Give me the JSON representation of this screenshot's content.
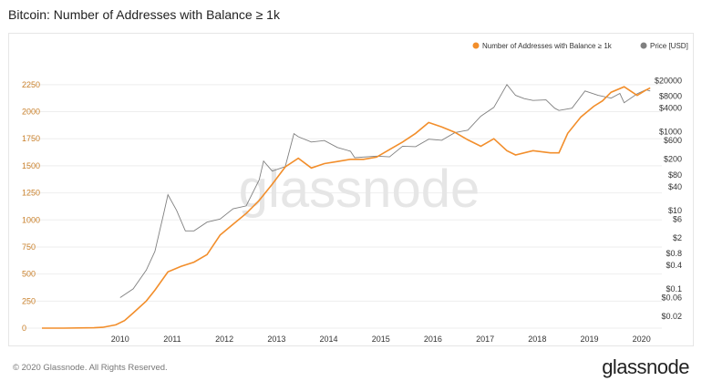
{
  "header": {
    "title": "Bitcoin: Number of Addresses with Balance ≥ 1k"
  },
  "footer": {
    "copyright": "© 2020 Glassnode. All Rights Reserved.",
    "brand": "glassnode"
  },
  "watermark": "glassnode",
  "colors": {
    "addresses": "#f28e2b",
    "price": "#808080",
    "left_axis_text": "#c9802b",
    "grid": "#eeeeee"
  },
  "chart_data": {
    "type": "line",
    "title": "Bitcoin: Number of Addresses with Balance ≥ 1k",
    "legend_position": "top-right",
    "x_ticks": [
      "2010",
      "2011",
      "2012",
      "2013",
      "2014",
      "2015",
      "2016",
      "2017",
      "2018",
      "2019",
      "2020"
    ],
    "y_left": {
      "ticks": [
        0,
        250,
        500,
        750,
        1000,
        1250,
        1500,
        1750,
        2000,
        2250
      ],
      "range": [
        0,
        2350
      ]
    },
    "y_right": {
      "scale": "log",
      "ticks": [
        "$20000",
        "$8000",
        "$4000",
        "$1000",
        "$600",
        "$200",
        "$80",
        "$40",
        "$10",
        "$6",
        "$2",
        "$0.8",
        "$0.4",
        "$0.1",
        "$0.06",
        "$0.02"
      ],
      "range": [
        0.01,
        30000
      ]
    },
    "series": [
      {
        "name": "Number of Addresses with Balance ≥ 1k",
        "axis": "left",
        "points": [
          [
            "2009-01",
            0
          ],
          [
            "2009-06",
            0
          ],
          [
            "2010-01",
            3
          ],
          [
            "2010-03",
            8
          ],
          [
            "2010-06",
            30
          ],
          [
            "2010-08",
            70
          ],
          [
            "2010-10",
            140
          ],
          [
            "2011-01",
            250
          ],
          [
            "2011-03",
            350
          ],
          [
            "2011-06",
            520
          ],
          [
            "2011-09",
            570
          ],
          [
            "2011-12",
            610
          ],
          [
            "2012-03",
            680
          ],
          [
            "2012-06",
            860
          ],
          [
            "2012-09",
            960
          ],
          [
            "2012-12",
            1060
          ],
          [
            "2013-03",
            1180
          ],
          [
            "2013-06",
            1330
          ],
          [
            "2013-09",
            1490
          ],
          [
            "2013-12",
            1570
          ],
          [
            "2014-03",
            1480
          ],
          [
            "2014-06",
            1520
          ],
          [
            "2014-09",
            1540
          ],
          [
            "2014-12",
            1560
          ],
          [
            "2015-03",
            1560
          ],
          [
            "2015-06",
            1580
          ],
          [
            "2015-09",
            1650
          ],
          [
            "2015-12",
            1720
          ],
          [
            "2016-03",
            1800
          ],
          [
            "2016-06",
            1900
          ],
          [
            "2016-09",
            1860
          ],
          [
            "2016-12",
            1810
          ],
          [
            "2017-03",
            1740
          ],
          [
            "2017-06",
            1680
          ],
          [
            "2017-09",
            1750
          ],
          [
            "2017-12",
            1640
          ],
          [
            "2018-02",
            1600
          ],
          [
            "2018-06",
            1640
          ],
          [
            "2018-10",
            1620
          ],
          [
            "2018-12",
            1620
          ],
          [
            "2019-02",
            1800
          ],
          [
            "2019-05",
            1950
          ],
          [
            "2019-08",
            2050
          ],
          [
            "2019-10",
            2100
          ],
          [
            "2019-12",
            2180
          ],
          [
            "2020-03",
            2230
          ],
          [
            "2020-06",
            2150
          ],
          [
            "2020-08",
            2200
          ],
          [
            "2020-09",
            2220
          ]
        ]
      },
      {
        "name": "Price [USD]",
        "axis": "right",
        "points": [
          [
            "2010-07",
            0.06
          ],
          [
            "2010-10",
            0.1
          ],
          [
            "2011-01",
            0.3
          ],
          [
            "2011-03",
            0.9
          ],
          [
            "2011-05",
            8
          ],
          [
            "2011-06",
            25
          ],
          [
            "2011-08",
            10
          ],
          [
            "2011-10",
            3
          ],
          [
            "2011-12",
            3
          ],
          [
            "2012-03",
            5
          ],
          [
            "2012-06",
            6
          ],
          [
            "2012-09",
            11
          ],
          [
            "2012-12",
            13
          ],
          [
            "2013-03",
            60
          ],
          [
            "2013-04",
            180
          ],
          [
            "2013-06",
            100
          ],
          [
            "2013-09",
            130
          ],
          [
            "2013-11",
            900
          ],
          [
            "2013-12",
            750
          ],
          [
            "2014-03",
            550
          ],
          [
            "2014-06",
            600
          ],
          [
            "2014-09",
            400
          ],
          [
            "2014-12",
            320
          ],
          [
            "2015-01",
            220
          ],
          [
            "2015-06",
            240
          ],
          [
            "2015-09",
            230
          ],
          [
            "2015-12",
            430
          ],
          [
            "2016-03",
            420
          ],
          [
            "2016-06",
            650
          ],
          [
            "2016-09",
            610
          ],
          [
            "2016-12",
            950
          ],
          [
            "2017-03",
            1100
          ],
          [
            "2017-06",
            2500
          ],
          [
            "2017-09",
            4200
          ],
          [
            "2017-12",
            16000
          ],
          [
            "2018-02",
            8500
          ],
          [
            "2018-04",
            7000
          ],
          [
            "2018-06",
            6300
          ],
          [
            "2018-09",
            6500
          ],
          [
            "2018-11",
            4000
          ],
          [
            "2018-12",
            3500
          ],
          [
            "2019-03",
            4000
          ],
          [
            "2019-06",
            11000
          ],
          [
            "2019-09",
            8500
          ],
          [
            "2019-12",
            7200
          ],
          [
            "2020-02",
            9500
          ],
          [
            "2020-03",
            5500
          ],
          [
            "2020-06",
            9300
          ],
          [
            "2020-08",
            11800
          ],
          [
            "2020-09",
            11000
          ]
        ]
      }
    ]
  }
}
